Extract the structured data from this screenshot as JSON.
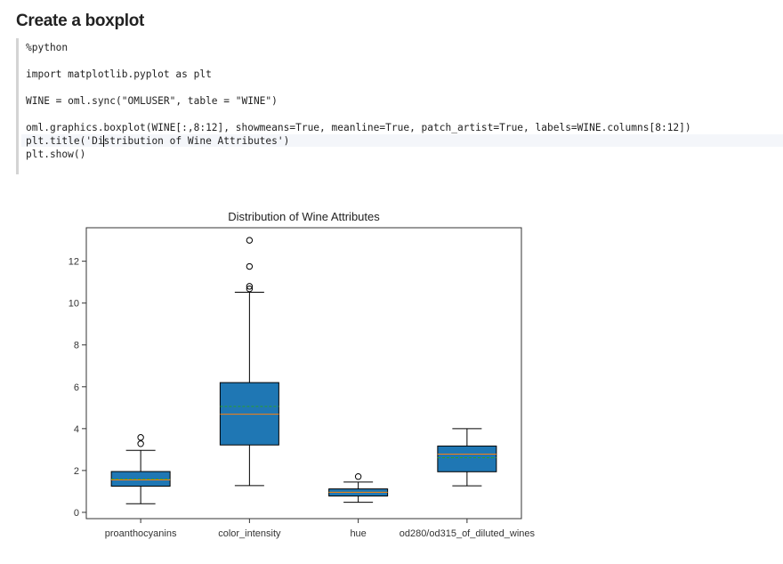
{
  "heading": "Create a boxplot",
  "code_lines": [
    "%python",
    "",
    "import matplotlib.pyplot as plt",
    "",
    "WINE = oml.sync(\"OMLUSER\", table = \"WINE\")",
    "",
    "oml.graphics.boxplot(WINE[:,8:12], showmeans=True, meanline=True, patch_artist=True, labels=WINE.columns[8:12])",
    "plt.title('Distribution of Wine Attributes')",
    "plt.show()"
  ],
  "chart_data": {
    "type": "boxplot",
    "title": "Distribution of Wine Attributes",
    "categories": [
      "proanthocyanins",
      "color_intensity",
      "hue",
      "od280/od315_of_diluted_wines"
    ],
    "ylim": [
      -0.3,
      13.6
    ],
    "yticks": [
      0,
      2,
      4,
      6,
      8,
      10,
      12
    ],
    "boxes": [
      {
        "whisker_low": 0.41,
        "q1": 1.25,
        "median": 1.55,
        "mean": 1.59,
        "q3": 1.95,
        "whisker_high": 2.96,
        "outliers": [
          3.28,
          3.58
        ]
      },
      {
        "whisker_low": 1.28,
        "q1": 3.22,
        "median": 4.69,
        "mean": 5.06,
        "q3": 6.2,
        "whisker_high": 10.52,
        "outliers": [
          10.68,
          10.8,
          11.75,
          13.0
        ]
      },
      {
        "whisker_low": 0.48,
        "q1": 0.78,
        "median": 0.96,
        "mean": 0.96,
        "q3": 1.12,
        "whisker_high": 1.45,
        "outliers": [
          1.71
        ]
      },
      {
        "whisker_low": 1.27,
        "q1": 1.94,
        "median": 2.78,
        "mean": 2.61,
        "q3": 3.17,
        "whisker_high": 4.0,
        "outliers": []
      }
    ],
    "grid": false,
    "colors": {
      "box_fill": "#1f77b4",
      "median": "#ff7f0e",
      "mean": "#2ca02c",
      "lines": "#000000"
    }
  }
}
